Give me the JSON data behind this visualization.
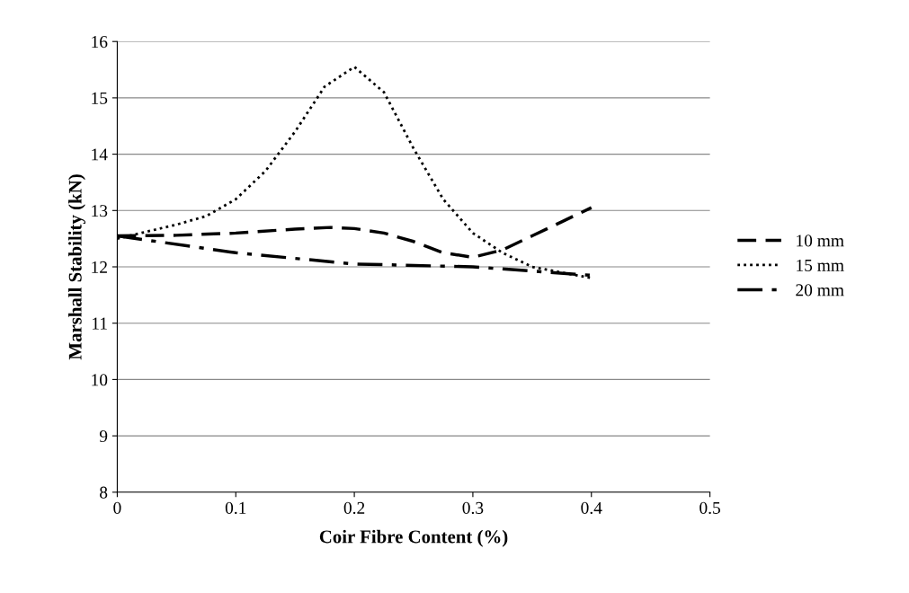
{
  "chart_data": {
    "type": "line",
    "xlabel": "Coir Fibre Content (%)",
    "ylabel": "Marshall Stability (kN)",
    "series": [
      {
        "name": "10 mm",
        "color": "#000000",
        "line_style": "dashed",
        "x": [
          0,
          0.05,
          0.1,
          0.15,
          0.18,
          0.2,
          0.225,
          0.25,
          0.275,
          0.3,
          0.325,
          0.35,
          0.375,
          0.4
        ],
        "values": [
          12.55,
          12.56,
          12.6,
          12.67,
          12.7,
          12.68,
          12.6,
          12.45,
          12.25,
          12.17,
          12.3,
          12.55,
          12.8,
          13.05
        ]
      },
      {
        "name": "15 mm",
        "color": "#000000",
        "line_style": "dotted",
        "x": [
          0,
          0.05,
          0.075,
          0.1,
          0.125,
          0.15,
          0.175,
          0.2,
          0.225,
          0.25,
          0.275,
          0.3,
          0.325,
          0.35,
          0.375,
          0.4
        ],
        "values": [
          12.5,
          12.75,
          12.9,
          13.2,
          13.7,
          14.4,
          15.2,
          15.55,
          15.1,
          14.1,
          13.2,
          12.6,
          12.25,
          12.0,
          11.9,
          11.8
        ]
      },
      {
        "name": "20 mm",
        "color": "#000000",
        "line_style": "dashdot",
        "x": [
          0,
          0.1,
          0.2,
          0.3,
          0.4
        ],
        "values": [
          12.55,
          12.25,
          12.05,
          12.0,
          11.85
        ]
      }
    ],
    "xlim": [
      0,
      0.5
    ],
    "xticks": [
      0,
      0.1,
      0.2,
      0.3,
      0.4,
      0.5
    ],
    "ylim": [
      8,
      16
    ],
    "yticks": [
      8,
      9,
      10,
      11,
      12,
      13,
      14,
      15,
      16
    ],
    "grid": "y",
    "legend": "right",
    "marker": "none"
  }
}
